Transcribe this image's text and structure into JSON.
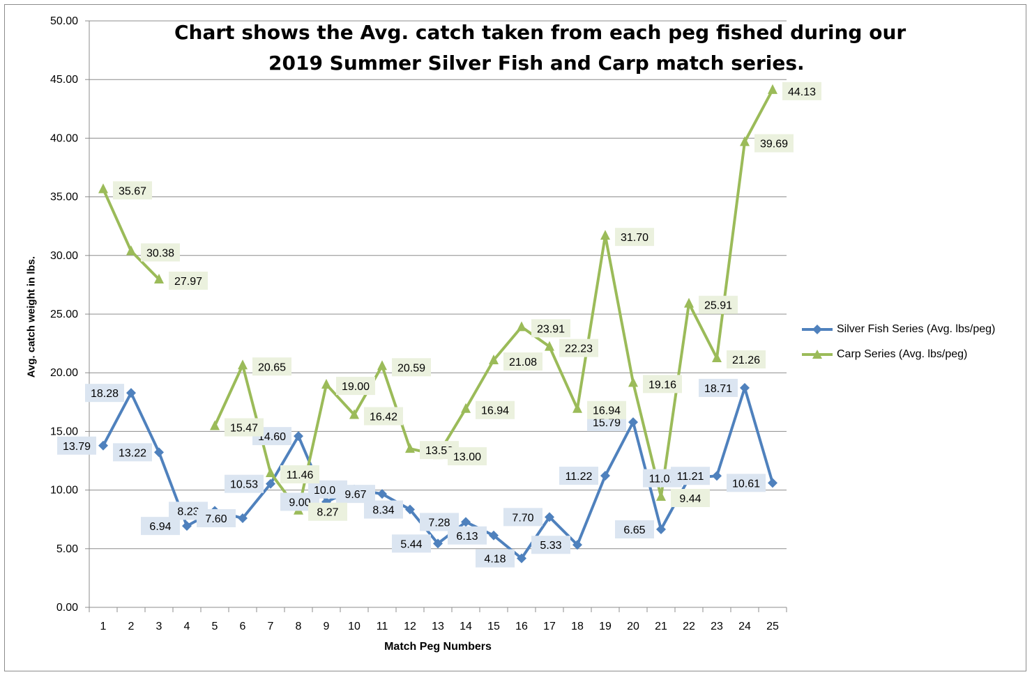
{
  "chart_data": {
    "type": "line",
    "title_lines": [
      "Chart shows the Avg. catch taken from each peg fished during our",
      "2019 Summer Silver Fish and Carp match series."
    ],
    "xlabel": "Match Peg Numbers",
    "ylabel": "Avg. catch weight in lbs.",
    "ylim": [
      0,
      50
    ],
    "ytick_step": 5,
    "ytick_labels": [
      "0.00",
      "5.00",
      "10.00",
      "15.00",
      "20.00",
      "25.00",
      "30.00",
      "35.00",
      "40.00",
      "45.00",
      "50.00"
    ],
    "categories": [
      "1",
      "2",
      "3",
      "4",
      "5",
      "6",
      "7",
      "8",
      "9",
      "10",
      "11",
      "12",
      "13",
      "14",
      "15",
      "16",
      "17",
      "18",
      "19",
      "20",
      "21",
      "22",
      "23",
      "24",
      "25"
    ],
    "grid": true,
    "legend_position": "right",
    "series": [
      {
        "name": "Silver Fish Series (Avg. lbs/peg)",
        "color": "#4f81bd",
        "label_bg": "#dbe5f1",
        "marker": "diamond",
        "values": [
          13.79,
          18.28,
          13.22,
          6.94,
          8.23,
          7.6,
          10.53,
          14.6,
          9.0,
          10.05,
          9.67,
          8.34,
          5.44,
          7.28,
          6.13,
          4.18,
          7.7,
          5.33,
          11.22,
          15.79,
          6.65,
          11.01,
          11.21,
          18.71,
          10.61
        ],
        "labels": [
          "13.79",
          "18.28",
          "13.22",
          "6.94",
          "8.23",
          "7.60",
          "10.53",
          "14.60",
          "9.00",
          "10.05",
          "9.67",
          "8.34",
          "5.44",
          "7.28",
          "6.13",
          "4.18",
          "7.70",
          "5.33",
          "11.22",
          "15.79",
          "6.65",
          "11.01",
          "11.21",
          "18.71",
          "10.61"
        ]
      },
      {
        "name": "Carp Series (Avg. lbs/peg)",
        "color": "#9bbb59",
        "label_bg": "#ebf1de",
        "marker": "triangle",
        "values": [
          35.67,
          30.38,
          27.97,
          null,
          15.47,
          20.65,
          11.46,
          8.27,
          19.0,
          16.42,
          20.59,
          13.53,
          13.0,
          16.94,
          21.08,
          23.91,
          22.23,
          16.94,
          31.7,
          19.16,
          9.44,
          25.91,
          21.26,
          39.69,
          44.13
        ],
        "labels": [
          "35.67",
          "30.38",
          "27.97",
          null,
          "15.47",
          "20.65",
          "11.46",
          "8.27",
          "19.00",
          "16.42",
          "20.59",
          "13.53",
          "13.00",
          "16.94",
          "21.08",
          "23.91",
          "22.23",
          "16.94",
          "31.70",
          "19.16",
          "9.44",
          "25.91",
          "21.26",
          "39.69",
          "44.13"
        ]
      }
    ]
  }
}
